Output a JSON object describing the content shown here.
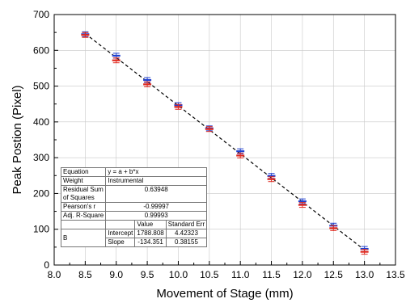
{
  "chart_data": {
    "type": "scatter",
    "xlabel": "Movement of Stage (mm)",
    "ylabel": "Peak Postion (Pixel)",
    "xlim": [
      8.0,
      13.5
    ],
    "ylim": [
      0,
      700
    ],
    "xticks": [
      "8.0",
      "8.5",
      "9.0",
      "9.5",
      "10.0",
      "10.5",
      "11.0",
      "11.5",
      "12.0",
      "12.5",
      "13.0",
      "13.5"
    ],
    "yticks": [
      "0",
      "100",
      "200",
      "300",
      "400",
      "500",
      "600",
      "700"
    ],
    "grid": true,
    "series": [
      {
        "color": "#1f3fcf",
        "marker": "error-bar",
        "x": [
          8.5,
          9.0,
          9.5,
          10.0,
          10.5,
          11.0,
          11.5,
          12.0,
          12.5,
          13.0
        ],
        "y": [
          645,
          585,
          517,
          447,
          382,
          318,
          249,
          178,
          110,
          45
        ]
      },
      {
        "color": "#e0281e",
        "marker": "error-bar",
        "x": [
          8.5,
          9.0,
          9.5,
          10.0,
          10.5,
          11.0,
          11.5,
          12.0,
          12.5,
          13.0
        ],
        "y": [
          643,
          572,
          505,
          442,
          380,
          306,
          240,
          168,
          103,
          37
        ]
      },
      {
        "line_style": "dashed",
        "color": "#000000",
        "intercept": 1788.808,
        "slope": -134.351
      }
    ],
    "fit_table": {
      "equation_label": "Equation",
      "equation": "y = a + b*x",
      "weight_label": "Weight",
      "weight": "Instrumental",
      "rss_label_1": "Residual Sum",
      "rss_label_2": "of Squares",
      "rss": "0.63948",
      "pearson_label": "Pearson's r",
      "pearson": "-0.99997",
      "adjr_label": "Adj. R-Square",
      "adjr": "0.99993",
      "value_header": "Value",
      "stderr_header": "Standard Err",
      "param": "B",
      "intercept_label": "Intercept",
      "intercept_value": "1788.808",
      "intercept_err": "4.42323",
      "slope_label": "Slope",
      "slope_value": "-134.351",
      "slope_err": "0.38155"
    }
  }
}
